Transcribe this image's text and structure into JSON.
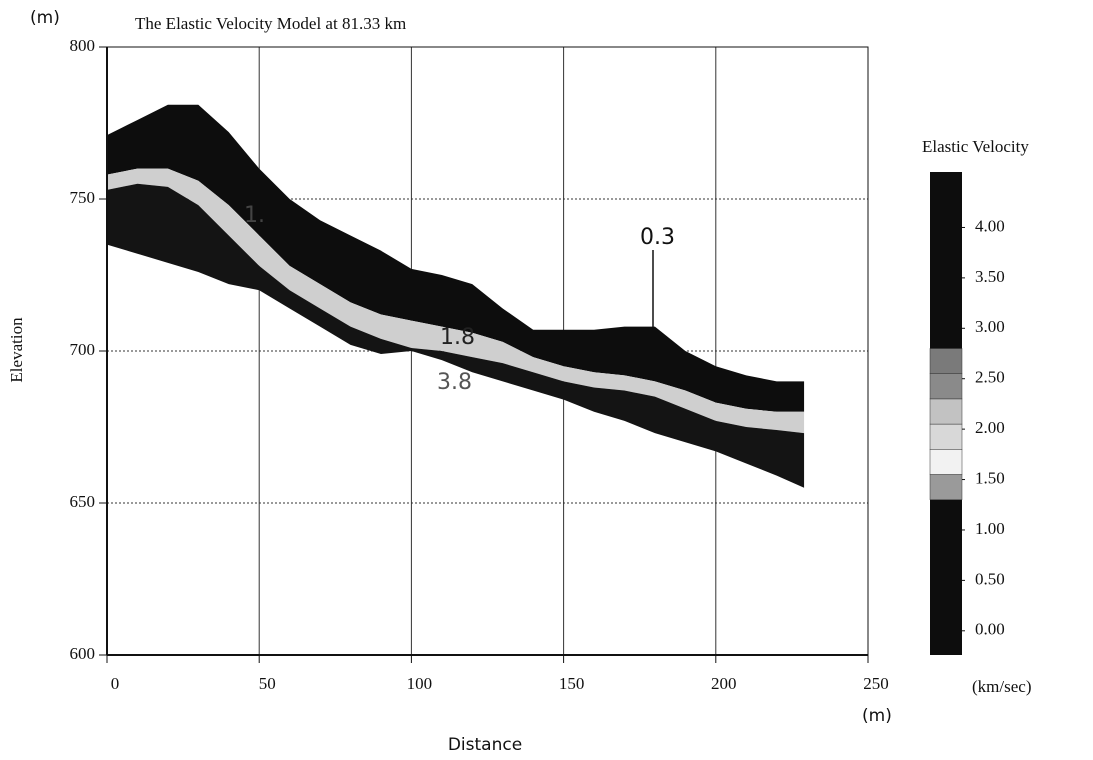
{
  "chart_data": {
    "type": "section",
    "title": "The Elastic Velocity Model at 81.33 km",
    "xlabel": "Distance",
    "ylabel": "Elevation",
    "xunit": "(m)",
    "yunit": "(m)",
    "xlim": [
      0,
      250
    ],
    "ylim": [
      600,
      800
    ],
    "xticks": [
      0,
      50,
      100,
      150,
      200,
      250
    ],
    "yticks": [
      600,
      650,
      700,
      750,
      800
    ],
    "grid": true,
    "x": [
      0,
      10,
      20,
      30,
      40,
      50,
      60,
      70,
      80,
      90,
      100,
      110,
      120,
      130,
      140,
      150,
      160,
      170,
      180,
      190,
      200,
      210,
      220,
      229
    ],
    "surfaces": [
      [
        771,
        776,
        781,
        781,
        772,
        760,
        750,
        743,
        738,
        733,
        727,
        725,
        722,
        714,
        707,
        707,
        707,
        708,
        708,
        700,
        695,
        692,
        690,
        690
      ],
      [
        758,
        760,
        760,
        756,
        748,
        738,
        728,
        722,
        716,
        712,
        710,
        708,
        706,
        703,
        698,
        695,
        693,
        692,
        690,
        687,
        683,
        681,
        680,
        680
      ],
      [
        753,
        755,
        754,
        748,
        738,
        728,
        720,
        714,
        708,
        704,
        701,
        700,
        698,
        696,
        693,
        690,
        688,
        687,
        685,
        681,
        677,
        675,
        674,
        673
      ],
      [
        735,
        732,
        729,
        726,
        722,
        720,
        714,
        708,
        702,
        699,
        700,
        697,
        693,
        690,
        687,
        684,
        680,
        677,
        673,
        670,
        667,
        663,
        659,
        655
      ]
    ],
    "layers": [
      {
        "label": "0.3",
        "color": "#0d0d0d"
      },
      {
        "label": "1.8",
        "color": "#cfcfcf"
      },
      {
        "label": "3.8",
        "color": "#141414"
      }
    ],
    "annotations": [
      "1."
    ],
    "colorbar": {
      "label": "Elastic Velocity",
      "unit": "(km/sec)",
      "lim": [
        -0.24,
        4.55
      ],
      "ticks": [
        {
          "value": 0,
          "label": "0.00"
        },
        {
          "value": 0.5,
          "label": "0.50"
        },
        {
          "value": 1,
          "label": "1.00"
        },
        {
          "value": 1.5,
          "label": "1.50"
        },
        {
          "value": 2,
          "label": "2.00"
        },
        {
          "value": 2.5,
          "label": "2.50"
        },
        {
          "value": 3,
          "label": "3.00"
        },
        {
          "value": 3.5,
          "label": "3.50"
        },
        {
          "value": 4,
          "label": "4.00"
        }
      ],
      "bands": [
        {
          "range": [
            -0.24,
            1.3
          ],
          "color": "#0d0d0d"
        },
        {
          "range": [
            1.3,
            1.55
          ],
          "color": "#9a9a9a"
        },
        {
          "range": [
            1.55,
            1.8
          ],
          "color": "#f2f2f2"
        },
        {
          "range": [
            1.8,
            2.05
          ],
          "color": "#d8d8d8"
        },
        {
          "range": [
            2.05,
            2.3
          ],
          "color": "#c2c2c2"
        },
        {
          "range": [
            2.3,
            2.55
          ],
          "color": "#8a8a8a"
        },
        {
          "range": [
            2.55,
            2.8
          ],
          "color": "#7a7a7a"
        },
        {
          "range": [
            2.8,
            4.55
          ],
          "color": "#0d0d0d"
        }
      ]
    }
  }
}
